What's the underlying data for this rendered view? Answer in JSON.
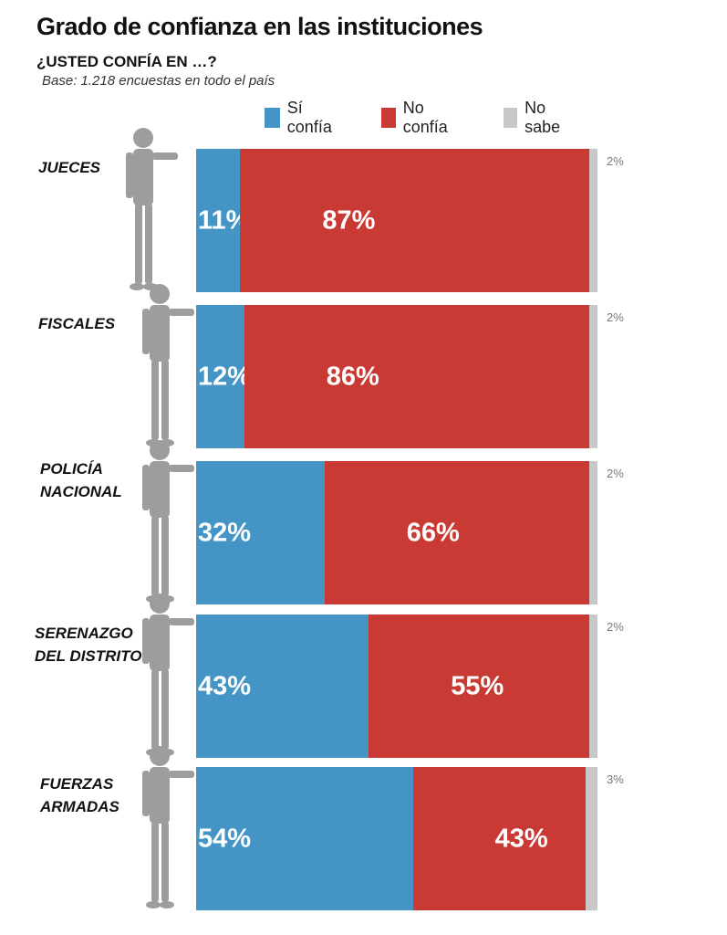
{
  "title": "Grado de confianza en las instituciones",
  "subtitle": "¿USTED CONFÍA EN …?",
  "base_note": "Base: 1.218 encuestas en todo el país",
  "colors": {
    "si": "#4495c6",
    "no": "#c93a35",
    "ns": "#c8c8c8"
  },
  "legend": [
    {
      "label": "Sí confía",
      "color": "#4495c6"
    },
    {
      "label": "No confía",
      "color": "#c93a35"
    },
    {
      "label": "No sabe",
      "color": "#c8c8c8"
    }
  ],
  "chart_data": {
    "type": "bar",
    "orientation": "horizontal",
    "stacked": true,
    "title": "Grado de confianza en las instituciones",
    "subtitle": "¿USTED CONFÍA EN …?",
    "note": "Base: 1.218 encuestas en todo el país",
    "legend_position": "top-right",
    "grid": false,
    "unit": "%",
    "categories": [
      [
        "JUECES"
      ],
      [
        "FISCALES"
      ],
      [
        "POLICÍA",
        "NACIONAL"
      ],
      [
        "SERENAZGO",
        "DEL DISTRITO"
      ],
      [
        "FUERZAS",
        "ARMADAS"
      ]
    ],
    "series": [
      {
        "name": "Sí confía",
        "color": "#4495c6",
        "values": [
          11,
          12,
          32,
          43,
          54
        ]
      },
      {
        "name": "No confía",
        "color": "#c93a35",
        "values": [
          87,
          86,
          66,
          55,
          43
        ]
      },
      {
        "name": "No sabe",
        "color": "#c8c8c8",
        "values": [
          2,
          2,
          2,
          2,
          3
        ]
      }
    ]
  }
}
